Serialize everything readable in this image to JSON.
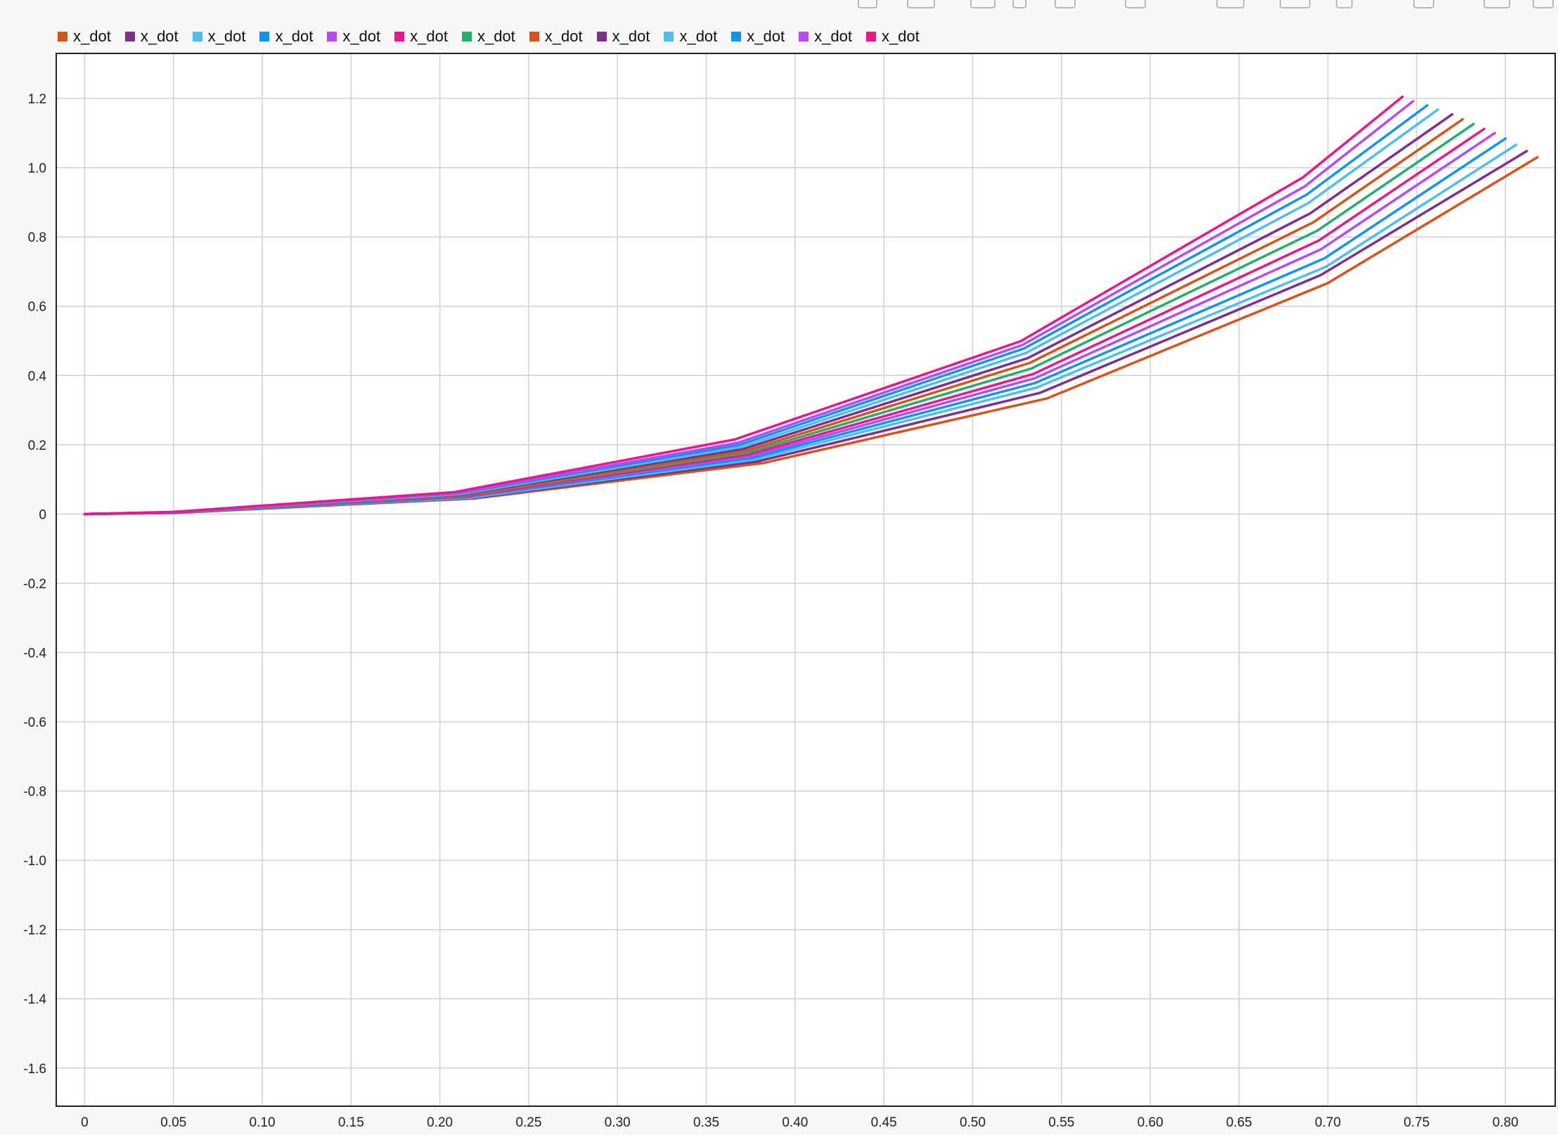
{
  "toolbar": {
    "icons": [
      "record-icon",
      "redo-icon",
      "layout-icon",
      "dropdown-icon",
      "data-cursor-icon",
      "zoom-in-icon",
      "fit-view-icon",
      "zoom-x-icon",
      "pan-icon",
      "grid-icon",
      "window-icon",
      "settings-icon"
    ]
  },
  "chart_data": {
    "type": "line",
    "title": "",
    "xlabel": "",
    "ylabel": "",
    "xlim": [
      -0.016,
      0.828
    ],
    "ylim": [
      -1.71,
      1.33
    ],
    "x_ticks": [
      "0",
      "0.05",
      "0.10",
      "0.15",
      "0.20",
      "0.25",
      "0.30",
      "0.35",
      "0.40",
      "0.45",
      "0.50",
      "0.55",
      "0.60",
      "0.65",
      "0.70",
      "0.75",
      "0.80"
    ],
    "y_ticks": [
      "1.2",
      "1.0",
      "0.8",
      "0.6",
      "0.4",
      "0.2",
      "0",
      "-0.2",
      "-0.4",
      "-0.6",
      "-0.8",
      "-1.0",
      "-1.2",
      "-1.4",
      "-1.6"
    ],
    "grid": true,
    "legend_position": "top-left",
    "series": [
      {
        "name": "x_dot",
        "color": "#d95319",
        "x": [
          0,
          0.05,
          0.22,
          0.382,
          0.542,
          0.7,
          0.818
        ],
        "y": [
          0,
          0.003,
          0.045,
          0.147,
          0.334,
          0.667,
          1.03
        ]
      },
      {
        "name": "x_dot",
        "color": "#7e2f8e",
        "x": [
          0,
          0.05,
          0.218,
          0.379,
          0.538,
          0.696,
          0.812
        ],
        "y": [
          0,
          0.003,
          0.046,
          0.152,
          0.35,
          0.69,
          1.048
        ]
      },
      {
        "name": "x_dot",
        "color": "#4dbeee",
        "x": [
          0,
          0.05,
          0.217,
          0.377,
          0.536,
          0.699,
          0.806
        ],
        "y": [
          0,
          0.004,
          0.047,
          0.157,
          0.365,
          0.714,
          1.066
        ]
      },
      {
        "name": "x_dot",
        "color": "#0f94f5",
        "x": [
          0,
          0.05,
          0.216,
          0.376,
          0.535,
          0.698,
          0.8
        ],
        "y": [
          0,
          0.004,
          0.049,
          0.162,
          0.378,
          0.738,
          1.084
        ]
      },
      {
        "name": "x_dot",
        "color": "#b84af5",
        "x": [
          0,
          0.05,
          0.215,
          0.375,
          0.535,
          0.696,
          0.794
        ],
        "y": [
          0,
          0.004,
          0.051,
          0.167,
          0.392,
          0.764,
          1.1
        ]
      },
      {
        "name": "x_dot",
        "color": "#f0148c",
        "x": [
          0,
          0.05,
          0.215,
          0.374,
          0.534,
          0.695,
          0.788
        ],
        "y": [
          0,
          0.004,
          0.052,
          0.172,
          0.404,
          0.79,
          1.112
        ]
      },
      {
        "name": "x_dot",
        "color": "#20b06a",
        "x": [
          0,
          0.05,
          0.214,
          0.373,
          0.533,
          0.694,
          0.782
        ],
        "y": [
          0,
          0.004,
          0.054,
          0.177,
          0.42,
          0.818,
          1.126
        ]
      },
      {
        "name": "x_dot",
        "color": "#d95319",
        "x": [
          0,
          0.05,
          0.214,
          0.372,
          0.532,
          0.692,
          0.776
        ],
        "y": [
          0,
          0.005,
          0.055,
          0.182,
          0.436,
          0.843,
          1.14
        ]
      },
      {
        "name": "x_dot",
        "color": "#7e2f8e",
        "x": [
          0,
          0.05,
          0.213,
          0.371,
          0.531,
          0.69,
          0.77
        ],
        "y": [
          0,
          0.005,
          0.057,
          0.188,
          0.45,
          0.868,
          1.154
        ]
      },
      {
        "name": "x_dot",
        "color": "#4dbeee",
        "x": [
          0,
          0.05,
          0.212,
          0.37,
          0.53,
          0.689,
          0.762
        ],
        "y": [
          0,
          0.005,
          0.058,
          0.194,
          0.465,
          0.898,
          1.168
        ]
      },
      {
        "name": "x_dot",
        "color": "#0f94f5",
        "x": [
          0,
          0.05,
          0.211,
          0.369,
          0.529,
          0.688,
          0.756
        ],
        "y": [
          0,
          0.005,
          0.06,
          0.2,
          0.478,
          0.922,
          1.18
        ]
      },
      {
        "name": "x_dot",
        "color": "#b84af5",
        "x": [
          0,
          0.05,
          0.21,
          0.368,
          0.528,
          0.687,
          0.748
        ],
        "y": [
          0,
          0.005,
          0.061,
          0.206,
          0.488,
          0.946,
          1.192
        ]
      },
      {
        "name": "x_dot",
        "color": "#f0148c",
        "x": [
          0,
          0.05,
          0.208,
          0.366,
          0.527,
          0.686,
          0.742
        ],
        "y": [
          0,
          0.006,
          0.063,
          0.215,
          0.499,
          0.972,
          1.205
        ]
      }
    ]
  }
}
